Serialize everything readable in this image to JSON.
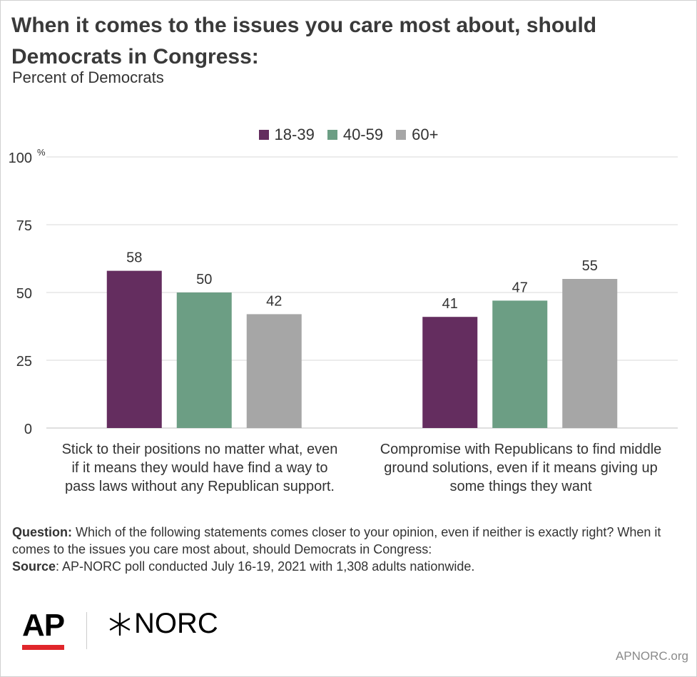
{
  "header": {
    "title": "When it comes to the issues you care most about, should Democrats in Congress:",
    "subtitle": "Percent of Democrats"
  },
  "chart_data": {
    "type": "bar",
    "title": "When it comes to the issues you care most about, should Democrats in Congress:",
    "subtitle": "Percent of Democrats",
    "categories": [
      "Stick to their positions no matter what, even if it means they would have find a way to pass laws without any Republican support.",
      "Compromise with Republicans to find middle ground solutions, even if it means giving up some things they want"
    ],
    "category_lines": [
      [
        "Stick to their positions no matter what, even",
        "if it means they would have find a way to",
        "pass laws without any Republican support."
      ],
      [
        "Compromise with Republicans to find middle",
        "ground solutions, even if it means giving up",
        "some things they want"
      ]
    ],
    "series": [
      {
        "name": "18-39",
        "values": [
          58,
          41
        ],
        "color": "#642d5f"
      },
      {
        "name": "40-59",
        "values": [
          50,
          47
        ],
        "color": "#6c9e84"
      },
      {
        "name": "60+",
        "values": [
          42,
          55
        ],
        "color": "#a6a6a6"
      }
    ],
    "ylim": [
      0,
      100
    ],
    "yticks": [
      0,
      25,
      50,
      75,
      100
    ],
    "ytick_labels": [
      "0",
      "25",
      "50",
      "75",
      "100"
    ],
    "y_unit": "%",
    "grid": true,
    "legend_position": "top-center"
  },
  "footnote": {
    "question_label": "Question:",
    "question_text": " Which of the following statements comes closer to your opinion, even if neither is exactly right? When it comes to the issues you care most about, should Democrats in Congress:",
    "source_label": "Source",
    "source_text": ": AP-NORC poll conducted July 16-19, 2021 with 1,308 adults nationwide."
  },
  "branding": {
    "ap_logo": "AP",
    "norc_logo": "NORC",
    "site": "APNORC.org",
    "ap_accent": "#e0262b"
  }
}
